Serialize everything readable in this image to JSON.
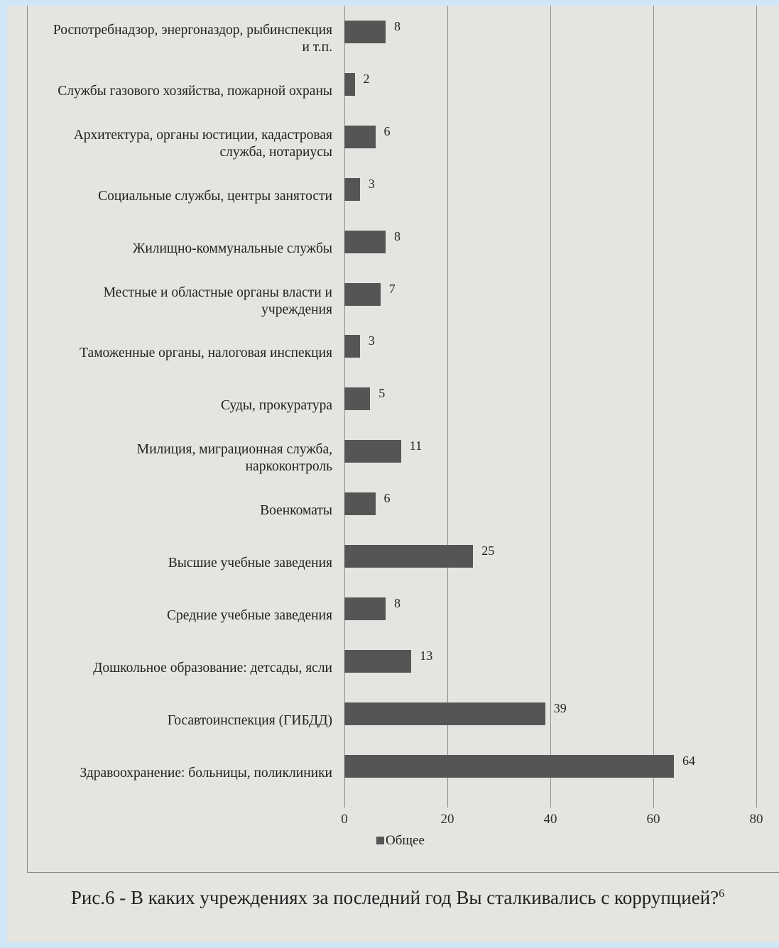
{
  "chart_data": {
    "type": "barh",
    "categories": [
      "Роспотребнадзор, энергоназдор, рыбинспекция и т.п.",
      "Службы газового хозяйства, пожарной охраны",
      "Архитектура, органы юстиции, кадастровая служба, нотариусы",
      "Социальные службы, центры занятости",
      "Жилищно-коммунальные службы",
      "Местные и областные органы власти и учреждения",
      "Таможенные органы, налоговая инспекция",
      "Суды, прокуратура",
      "Милиция, миграционная служба, наркоконтроль",
      "Военкоматы",
      "Высшие учебные заведения",
      "Средние учебные заведения",
      "Дошкольное образование: детсады, ясли",
      "Госавтоинспекция (ГИБДД)",
      "Здравоохранение: больницы, поликлиники"
    ],
    "series": [
      {
        "name": "Общее",
        "color": "#555555",
        "values": [
          8,
          2,
          6,
          3,
          8,
          7,
          3,
          5,
          11,
          6,
          25,
          8,
          13,
          39,
          64
        ]
      }
    ],
    "xlim": [
      0,
      80
    ],
    "xticks": [
      0,
      20,
      40,
      60,
      80
    ],
    "grid": true,
    "caption": "Рис.6 - В каких учреждениях за последний год Вы сталкивались с коррупцией?",
    "caption_footnote": "6"
  }
}
